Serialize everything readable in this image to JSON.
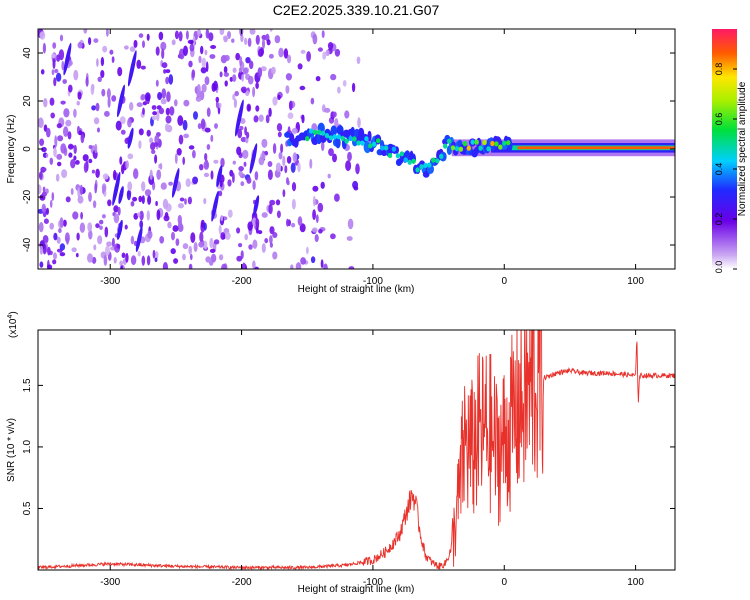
{
  "title": "C2E2.2025.339.10.21.G07",
  "chart_data": [
    {
      "type": "heatmap",
      "xlabel": "Height of straight line (km)",
      "ylabel": "Frequency (Hz)",
      "xlim": [
        -355,
        130
      ],
      "ylim": [
        -50,
        50
      ],
      "xticks": [
        -300,
        -200,
        -100,
        0,
        100
      ],
      "yticks": [
        -40,
        -20,
        0,
        20,
        40
      ],
      "colorbar": {
        "label": "Normalized spectral amplitude",
        "range": [
          0,
          0.96
        ],
        "ticks": [
          0.0,
          0.2,
          0.4,
          0.6,
          0.8
        ],
        "tick_labels": [
          "0.0",
          "0.2",
          "0.4",
          "0.6",
          "0.8"
        ]
      },
      "ridge": {
        "description_values": true,
        "points": [
          [
            -160,
            5
          ],
          [
            -140,
            6
          ],
          [
            -120,
            5
          ],
          [
            -100,
            3
          ],
          [
            -90,
            0
          ],
          [
            -80,
            -3
          ],
          [
            -70,
            -6
          ],
          [
            -60,
            -8
          ],
          [
            -55,
            -7
          ],
          [
            -50,
            -3
          ],
          [
            -45,
            1
          ],
          [
            -40,
            2
          ],
          [
            -30,
            1
          ],
          [
            -20,
            1
          ],
          [
            -10,
            1
          ],
          [
            0,
            1
          ],
          [
            50,
            0
          ],
          [
            100,
            0
          ],
          [
            130,
            0
          ]
        ]
      }
    },
    {
      "type": "line",
      "xlabel": "Height of straight line (km)",
      "ylabel": "SNR (10 * v/v)",
      "scale_label": "(x10",
      "scale_exp": "4",
      "scale_close": ")",
      "xlim": [
        -355,
        130
      ],
      "ylim": [
        0,
        1.95
      ],
      "xticks": [
        -300,
        -200,
        -100,
        0,
        100
      ],
      "yticks": [
        0.5,
        1.0,
        1.5
      ],
      "ytick_labels": [
        "0.5",
        "1.0",
        "1.5"
      ],
      "color": "#e8312a",
      "series": [
        {
          "name": "SNR",
          "x": [
            -355,
            -300,
            -250,
            -200,
            -150,
            -120,
            -100,
            -90,
            -80,
            -75,
            -70,
            -67,
            -64,
            -60,
            -55,
            -50,
            -45,
            -40,
            -35,
            -30,
            -25,
            -20,
            -15,
            -10,
            -5,
            0,
            10,
            20,
            30,
            40,
            50,
            60,
            80,
            100,
            101,
            102,
            103,
            120,
            130
          ],
          "y": [
            0.02,
            0.05,
            0.03,
            0.02,
            0.02,
            0.04,
            0.08,
            0.15,
            0.28,
            0.45,
            0.62,
            0.52,
            0.3,
            0.12,
            0.06,
            0.03,
            0.05,
            0.18,
            0.55,
            1.05,
            0.95,
            1.1,
            1.15,
            1.1,
            0.95,
            1.05,
            1.3,
            1.48,
            1.56,
            1.6,
            1.62,
            1.6,
            1.6,
            1.58,
            1.9,
            1.35,
            1.58,
            1.58,
            1.58
          ]
        }
      ]
    }
  ]
}
